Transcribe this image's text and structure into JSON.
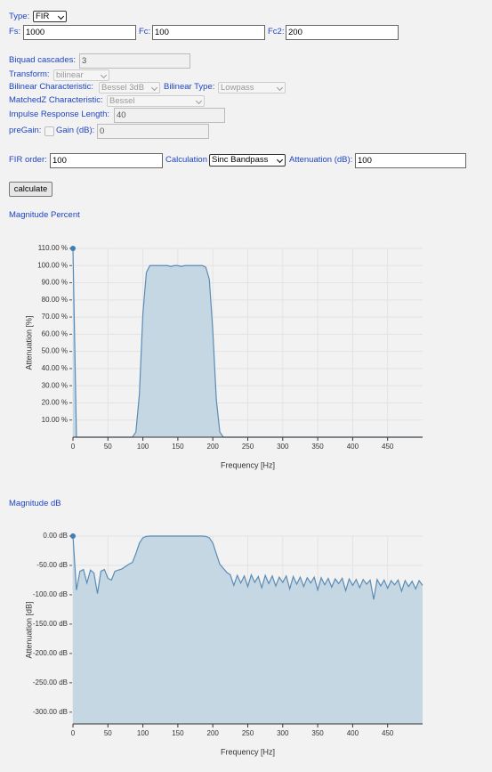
{
  "form": {
    "type": {
      "label": "Type:",
      "value": "FIR"
    },
    "fs": {
      "label": "Fs:",
      "value": "1000"
    },
    "fc": {
      "label": "Fc:",
      "value": "100"
    },
    "fc2": {
      "label": "Fc2:",
      "value": "200"
    },
    "biquad_cascades": {
      "label": "Biquad cascades:",
      "value": "3"
    },
    "transform": {
      "label": "Transform:",
      "value": "bilinear"
    },
    "bilinear_characteristic": {
      "label": "Bilinear Characteristic:",
      "value": "Bessel 3dB"
    },
    "bilinear_type": {
      "label": "Bilinear Type:",
      "value": "Lowpass"
    },
    "matchedz_characteristic": {
      "label": "MatchedZ Characteristic:",
      "value": "Bessel"
    },
    "impulse_response_length": {
      "label": "Impulse Response Length:",
      "value": "40"
    },
    "pregain": {
      "label": "preGain:"
    },
    "gain_db": {
      "label": "Gain (dB):",
      "value": "0"
    },
    "fir_order": {
      "label": "FIR order:",
      "value": "100"
    },
    "calculation": {
      "label": "Calculation",
      "value": "Sinc Bandpass"
    },
    "attenuation_db": {
      "label": "Attenuation (dB):",
      "value": "100"
    },
    "button": "calculate"
  },
  "chart_data": [
    {
      "type": "area",
      "title": "Magnitude Percent",
      "xlabel": "Frequency [Hz]",
      "ylabel": "Attenuation [%]",
      "color": "#5a8cb6",
      "fill_color": "#c6d7e4",
      "grid": true,
      "xlim": [
        0,
        500
      ],
      "xticks": [
        0,
        50,
        100,
        150,
        200,
        250,
        300,
        350,
        400,
        450
      ],
      "ylim": [
        0,
        110
      ],
      "yticks": [
        {
          "value": 110,
          "label": "110.00 %"
        },
        {
          "value": 100,
          "label": "100.00 %"
        },
        {
          "value": 90,
          "label": "90.00 %"
        },
        {
          "value": 80,
          "label": "80.00 %"
        },
        {
          "value": 70,
          "label": "70.00 %"
        },
        {
          "value": 60,
          "label": "60.00 %"
        },
        {
          "value": 50,
          "label": "50.00 %"
        },
        {
          "value": 40,
          "label": "40.00 %"
        },
        {
          "value": 30,
          "label": "30.00 %"
        },
        {
          "value": 20,
          "label": "20.00 %"
        },
        {
          "value": 10,
          "label": "10.00 %"
        }
      ],
      "x": [
        0,
        5,
        10,
        15,
        20,
        25,
        30,
        35,
        40,
        45,
        50,
        55,
        60,
        65,
        70,
        75,
        80,
        85,
        90,
        95,
        100,
        105,
        110,
        115,
        120,
        125,
        130,
        135,
        140,
        145,
        150,
        155,
        160,
        165,
        170,
        175,
        180,
        185,
        190,
        195,
        200,
        205,
        210,
        215,
        220,
        225,
        230,
        235,
        240,
        245,
        250,
        255,
        260,
        265,
        270,
        275,
        280,
        285,
        290,
        295,
        300,
        305,
        310,
        315,
        320,
        325,
        330,
        335,
        340,
        345,
        350,
        355,
        360,
        365,
        370,
        375,
        380,
        385,
        390,
        395,
        400,
        405,
        410,
        415,
        420,
        425,
        430,
        435,
        440,
        445,
        450,
        455,
        460,
        465,
        470,
        475,
        480,
        485,
        490,
        495,
        500
      ],
      "values": [
        110,
        0,
        0,
        0,
        0,
        0,
        0,
        0,
        0,
        0,
        0,
        0,
        0,
        0,
        0,
        0,
        0,
        0,
        3,
        25,
        72,
        96,
        100,
        100,
        100,
        100,
        100,
        100,
        99.5,
        100,
        100,
        99.5,
        100,
        100,
        100,
        100,
        100,
        100,
        99,
        92,
        62,
        22,
        3,
        0,
        0,
        0,
        0,
        0,
        0,
        0,
        0,
        0,
        0,
        0,
        0,
        0,
        0,
        0,
        0,
        0,
        0,
        0,
        0,
        0,
        0,
        0,
        0,
        0,
        0,
        0,
        0,
        0,
        0,
        0,
        0,
        0,
        0,
        0,
        0,
        0,
        0,
        0,
        0,
        0,
        0,
        0,
        0,
        0,
        0,
        0,
        0,
        0,
        0,
        0,
        0,
        0,
        0,
        0,
        0,
        0,
        0
      ]
    },
    {
      "type": "area",
      "title": "Magnitude dB",
      "xlabel": "Frequency [Hz]",
      "ylabel": "Attenuation [dB]",
      "color": "#5a8cb6",
      "fill_color": "#c6d7e4",
      "grid": true,
      "xlim": [
        0,
        500
      ],
      "xticks": [
        0,
        50,
        100,
        150,
        200,
        250,
        300,
        350,
        400,
        450
      ],
      "ylim": [
        -320,
        0
      ],
      "yticks": [
        {
          "value": 0,
          "label": "0.00 dB"
        },
        {
          "value": -50,
          "label": "-50.00 dB"
        },
        {
          "value": -100,
          "label": "-100.00 dB"
        },
        {
          "value": -150,
          "label": "-150.00 dB"
        },
        {
          "value": -200,
          "label": "-200.00 dB"
        },
        {
          "value": -250,
          "label": "-250.00 dB"
        },
        {
          "value": -300,
          "label": "-300.00 dB"
        }
      ],
      "x": [
        0,
        5,
        10,
        15,
        20,
        25,
        30,
        35,
        40,
        45,
        50,
        55,
        60,
        65,
        70,
        75,
        80,
        85,
        90,
        95,
        100,
        105,
        110,
        115,
        120,
        125,
        130,
        135,
        140,
        145,
        150,
        155,
        160,
        165,
        170,
        175,
        180,
        185,
        190,
        195,
        200,
        205,
        210,
        215,
        220,
        225,
        230,
        235,
        240,
        245,
        250,
        255,
        260,
        265,
        270,
        275,
        280,
        285,
        290,
        295,
        300,
        305,
        310,
        315,
        320,
        325,
        330,
        335,
        340,
        345,
        350,
        355,
        360,
        365,
        370,
        375,
        380,
        385,
        390,
        395,
        400,
        405,
        410,
        415,
        420,
        425,
        430,
        435,
        440,
        445,
        450,
        455,
        460,
        465,
        470,
        475,
        480,
        485,
        490,
        495,
        500
      ],
      "values": [
        0,
        -92,
        -60,
        -57,
        -80,
        -58,
        -63,
        -98,
        -60,
        -57,
        -72,
        -75,
        -60,
        -58,
        -56,
        -52,
        -48,
        -45,
        -30,
        -12,
        -3,
        -0.5,
        0,
        0,
        0,
        0,
        0,
        0,
        0,
        0,
        0,
        0,
        0,
        0,
        0,
        0,
        0,
        0,
        -0.5,
        -3,
        -12,
        -30,
        -48,
        -55,
        -62,
        -66,
        -84,
        -67,
        -80,
        -68,
        -86,
        -66,
        -79,
        -69,
        -88,
        -67,
        -81,
        -68,
        -85,
        -70,
        -79,
        -68,
        -90,
        -69,
        -82,
        -70,
        -86,
        -71,
        -80,
        -70,
        -92,
        -71,
        -83,
        -72,
        -87,
        -73,
        -81,
        -72,
        -93,
        -73,
        -84,
        -74,
        -88,
        -74,
        -82,
        -75,
        -108,
        -74,
        -85,
        -75,
        -89,
        -76,
        -83,
        -75,
        -94,
        -76,
        -86,
        -77,
        -90,
        -76,
        -84
      ]
    }
  ]
}
